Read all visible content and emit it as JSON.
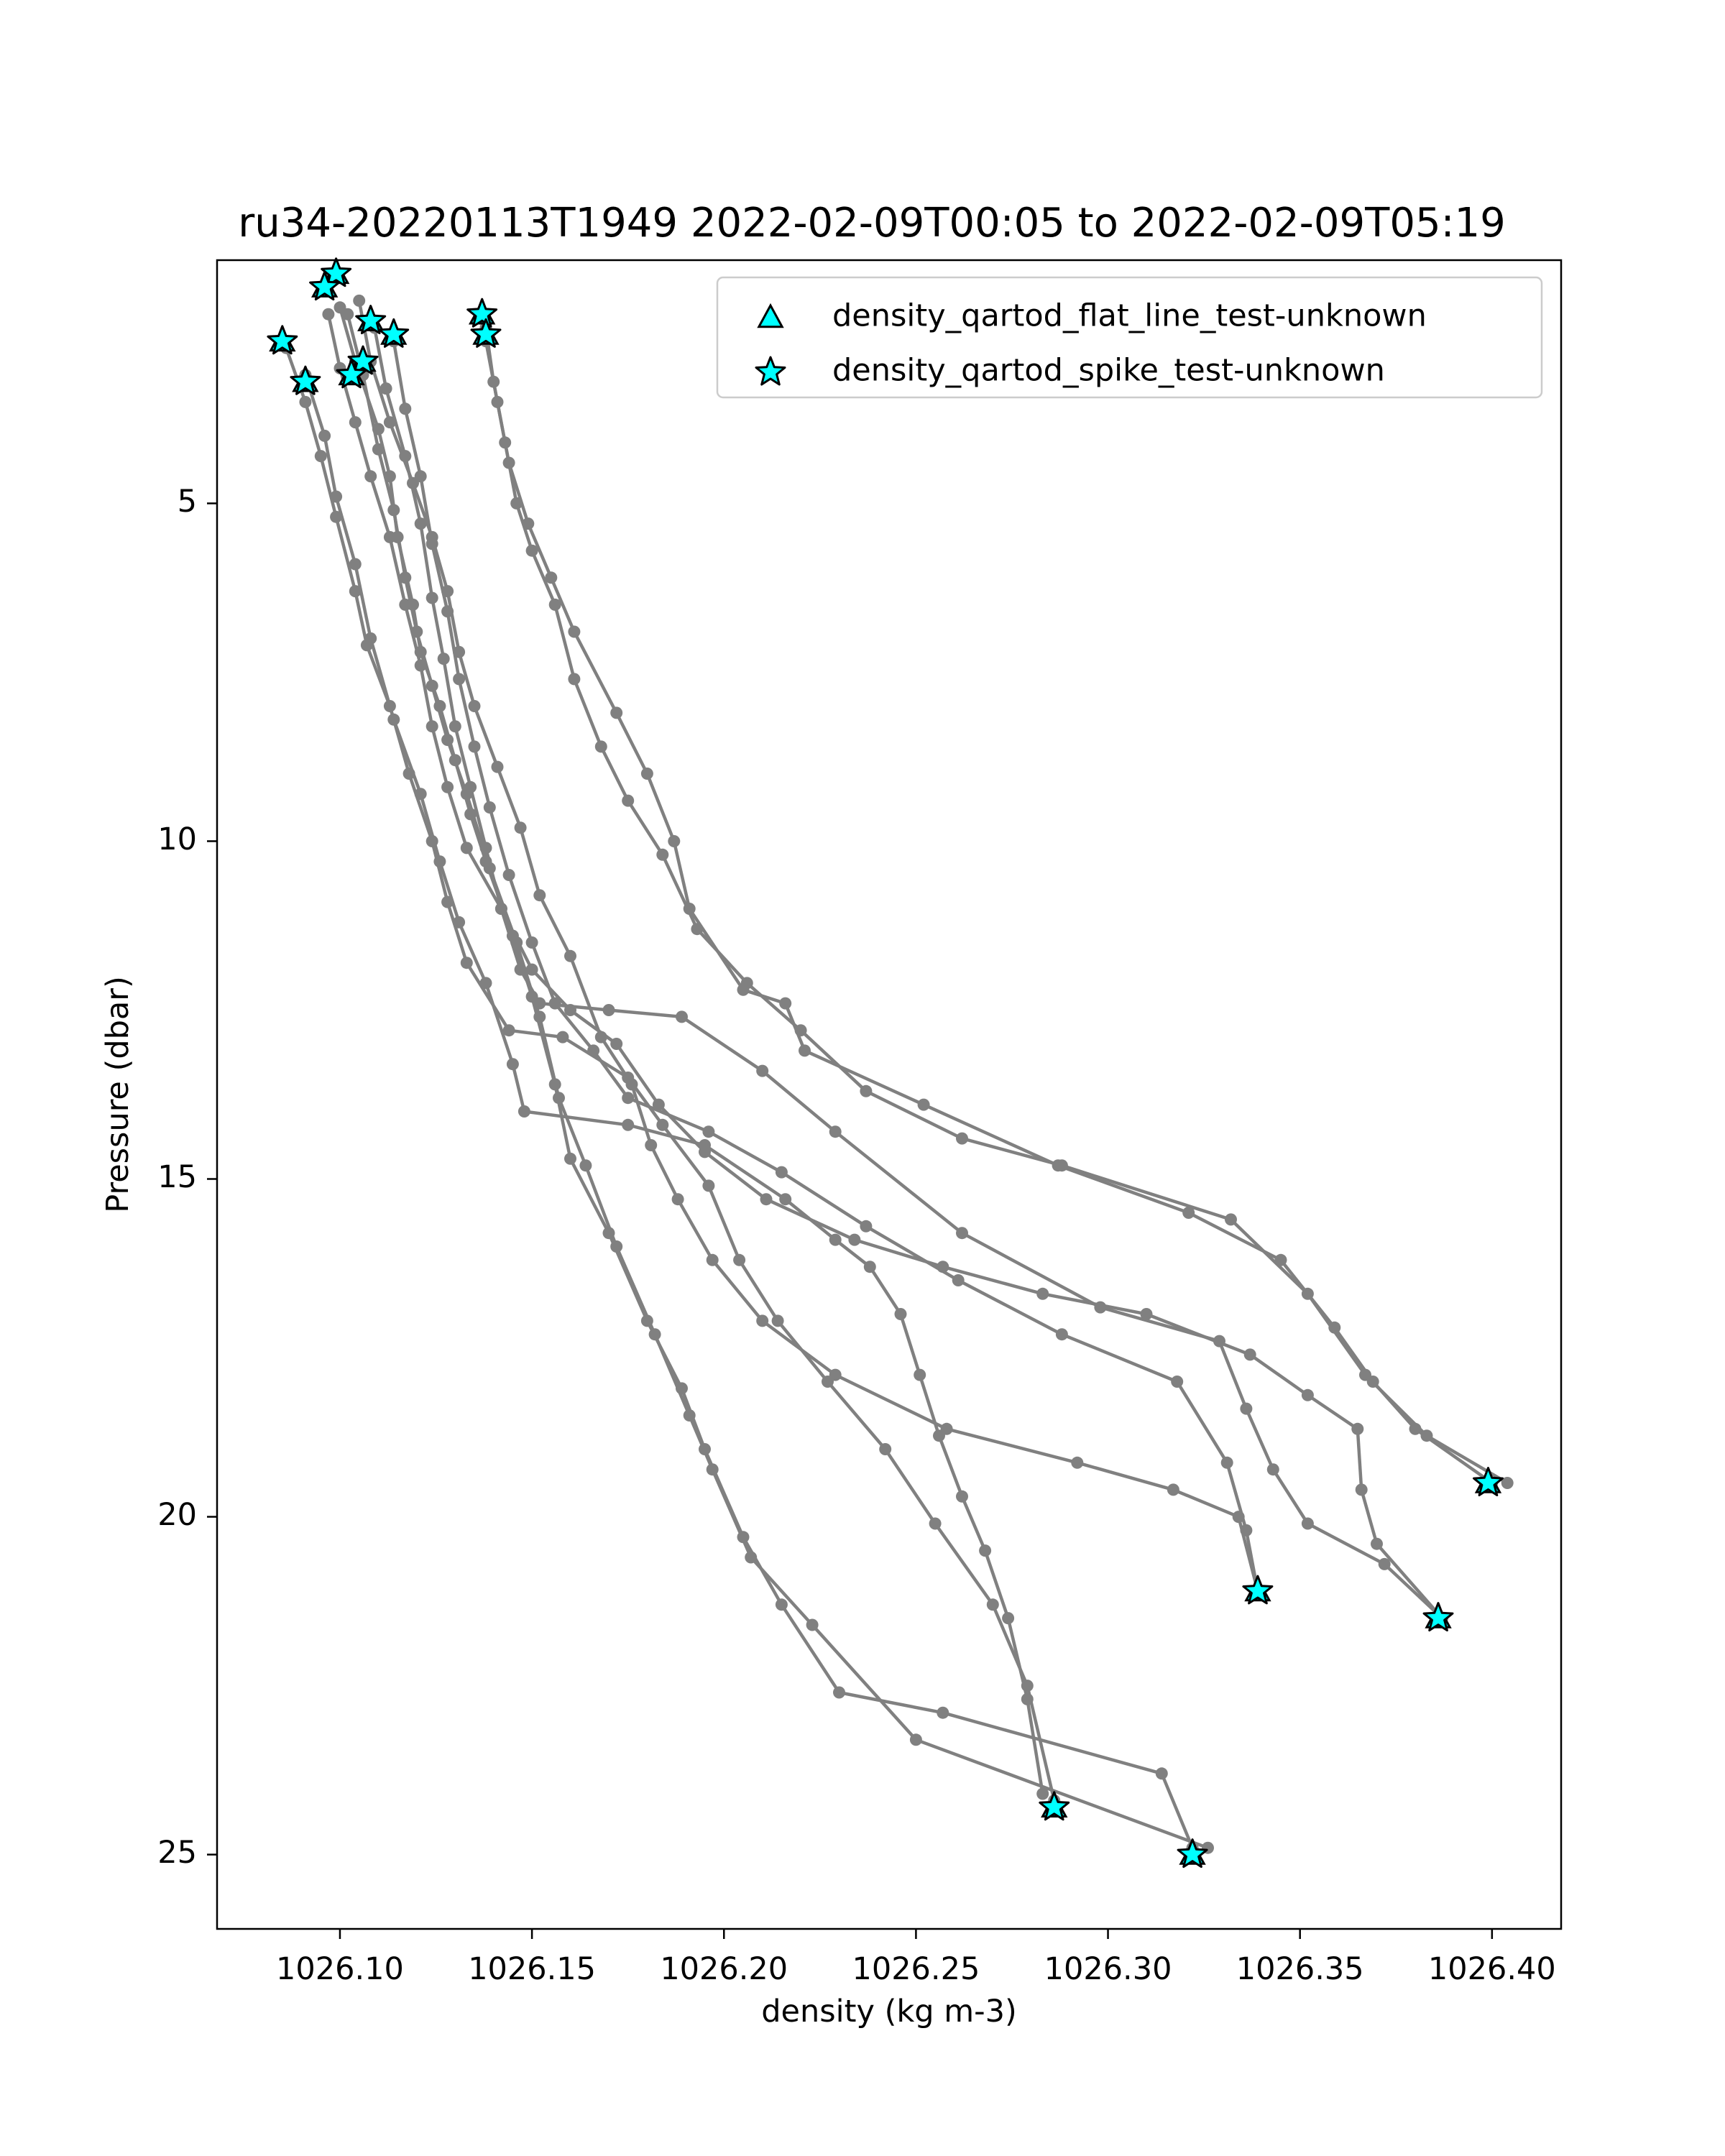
{
  "chart_data": {
    "type": "scatter",
    "title": "ru34-20220113T1949 2022-02-09T00:05 to 2022-02-09T05:19",
    "xlabel": "density (kg m-3)",
    "ylabel": "Pressure (dbar)",
    "xlim": [
      1026.068,
      1026.418
    ],
    "ylim": [
      26.1,
      1.4
    ],
    "y_inverted": true,
    "grid": false,
    "legend_position": "top-right",
    "xticks": [
      1026.1,
      1026.15,
      1026.2,
      1026.25,
      1026.3,
      1026.35,
      1026.4
    ],
    "xtick_labels": [
      "1026.10",
      "1026.15",
      "1026.20",
      "1026.25",
      "1026.30",
      "1026.35",
      "1026.40"
    ],
    "yticks": [
      5,
      10,
      15,
      20,
      25
    ],
    "ytick_labels": [
      "5",
      "10",
      "15",
      "20",
      "25"
    ],
    "colors": {
      "profile_line": "#808080",
      "flag_marker": "#00ffff",
      "marker_edge": "#000000"
    },
    "legend": [
      {
        "label": "density_qartod_flat_line_test-unknown",
        "marker": "triangle"
      },
      {
        "label": "density_qartod_spike_test-unknown",
        "marker": "star"
      }
    ],
    "profiles": [
      {
        "points": [
          [
            1026.1,
            2.1
          ],
          [
            1026.104,
            2.9
          ],
          [
            1026.11,
            3.9
          ],
          [
            1026.113,
            4.6
          ],
          [
            1026.115,
            5.5
          ],
          [
            1026.119,
            6.5
          ],
          [
            1026.121,
            7.2
          ],
          [
            1026.126,
            8.0
          ],
          [
            1026.13,
            8.8
          ],
          [
            1026.134,
            9.6
          ],
          [
            1026.138,
            10.3
          ],
          [
            1026.145,
            11.4
          ],
          [
            1026.15,
            12.3
          ],
          [
            1026.156,
            13.6
          ],
          [
            1026.16,
            14.7
          ],
          [
            1026.17,
            15.8
          ],
          [
            1026.18,
            17.1
          ],
          [
            1026.189,
            18.1
          ],
          [
            1026.195,
            19.0
          ],
          [
            1026.205,
            20.3
          ],
          [
            1026.215,
            21.3
          ],
          [
            1026.23,
            22.6
          ],
          [
            1026.257,
            22.9
          ],
          [
            1026.314,
            23.8
          ],
          [
            1026.322,
            24.9
          ]
        ]
      },
      {
        "points": [
          [
            1026.102,
            2.2
          ],
          [
            1026.106,
            3.1
          ],
          [
            1026.11,
            4.2
          ],
          [
            1026.114,
            5.1
          ],
          [
            1026.117,
            6.1
          ],
          [
            1026.12,
            6.9
          ],
          [
            1026.124,
            7.7
          ],
          [
            1026.128,
            8.5
          ],
          [
            1026.133,
            9.3
          ],
          [
            1026.139,
            10.4
          ],
          [
            1026.146,
            11.5
          ],
          [
            1026.152,
            12.6
          ],
          [
            1026.157,
            13.8
          ],
          [
            1026.164,
            14.8
          ],
          [
            1026.172,
            16.0
          ],
          [
            1026.182,
            17.3
          ],
          [
            1026.191,
            18.5
          ],
          [
            1026.197,
            19.3
          ],
          [
            1026.207,
            20.6
          ],
          [
            1026.223,
            21.6
          ],
          [
            1026.25,
            23.3
          ],
          [
            1026.326,
            24.9
          ]
        ]
      },
      {
        "points": [
          [
            1026.086,
            2.7
          ],
          [
            1026.091,
            3.5
          ],
          [
            1026.095,
            4.3
          ],
          [
            1026.099,
            5.2
          ],
          [
            1026.104,
            6.3
          ],
          [
            1026.107,
            7.1
          ],
          [
            1026.113,
            8.0
          ],
          [
            1026.118,
            9.0
          ],
          [
            1026.124,
            10.0
          ],
          [
            1026.128,
            10.9
          ],
          [
            1026.133,
            11.8
          ],
          [
            1026.144,
            12.8
          ],
          [
            1026.158,
            12.9
          ],
          [
            1026.175,
            13.5
          ],
          [
            1026.184,
            14.2
          ],
          [
            1026.196,
            15.1
          ],
          [
            1026.204,
            16.2
          ],
          [
            1026.214,
            17.1
          ],
          [
            1026.227,
            18.0
          ],
          [
            1026.242,
            19.0
          ],
          [
            1026.255,
            20.1
          ],
          [
            1026.27,
            21.3
          ],
          [
            1026.279,
            22.5
          ],
          [
            1026.286,
            24.2
          ]
        ]
      },
      {
        "points": [
          [
            1026.091,
            3.1
          ],
          [
            1026.096,
            4.0
          ],
          [
            1026.099,
            4.9
          ],
          [
            1026.104,
            5.9
          ],
          [
            1026.108,
            7.0
          ],
          [
            1026.114,
            8.2
          ],
          [
            1026.121,
            9.3
          ],
          [
            1026.126,
            10.3
          ],
          [
            1026.131,
            11.2
          ],
          [
            1026.138,
            12.1
          ],
          [
            1026.145,
            13.3
          ],
          [
            1026.148,
            14.0
          ],
          [
            1026.175,
            14.2
          ],
          [
            1026.195,
            14.5
          ],
          [
            1026.216,
            15.3
          ],
          [
            1026.229,
            15.9
          ],
          [
            1026.238,
            16.3
          ],
          [
            1026.246,
            17.0
          ],
          [
            1026.251,
            17.9
          ],
          [
            1026.256,
            18.8
          ],
          [
            1026.262,
            19.7
          ],
          [
            1026.268,
            20.5
          ],
          [
            1026.274,
            21.5
          ],
          [
            1026.279,
            22.7
          ],
          [
            1026.283,
            24.1
          ]
        ]
      },
      {
        "points": [
          [
            1026.109,
            2.4
          ],
          [
            1026.112,
            3.3
          ],
          [
            1026.117,
            4.3
          ],
          [
            1026.121,
            5.3
          ],
          [
            1026.124,
            6.4
          ],
          [
            1026.127,
            7.3
          ],
          [
            1026.13,
            8.3
          ],
          [
            1026.134,
            9.2
          ],
          [
            1026.138,
            10.1
          ],
          [
            1026.142,
            11.0
          ],
          [
            1026.147,
            11.9
          ],
          [
            1026.152,
            12.4
          ],
          [
            1026.17,
            12.5
          ],
          [
            1026.189,
            12.6
          ],
          [
            1026.21,
            13.4
          ],
          [
            1026.229,
            14.3
          ],
          [
            1026.262,
            15.8
          ],
          [
            1026.298,
            16.9
          ],
          [
            1026.329,
            17.4
          ],
          [
            1026.336,
            18.4
          ],
          [
            1026.343,
            19.3
          ],
          [
            1026.352,
            20.1
          ],
          [
            1026.372,
            20.7
          ],
          [
            1026.387,
            21.5
          ]
        ]
      },
      {
        "points": [
          [
            1026.114,
            2.6
          ],
          [
            1026.117,
            3.6
          ],
          [
            1026.121,
            4.6
          ],
          [
            1026.124,
            5.6
          ],
          [
            1026.128,
            6.6
          ],
          [
            1026.131,
            7.6
          ],
          [
            1026.135,
            8.6
          ],
          [
            1026.139,
            9.5
          ],
          [
            1026.144,
            10.5
          ],
          [
            1026.15,
            11.5
          ],
          [
            1026.156,
            12.4
          ],
          [
            1026.166,
            13.1
          ],
          [
            1026.175,
            13.8
          ],
          [
            1026.196,
            14.3
          ],
          [
            1026.215,
            14.9
          ],
          [
            1026.237,
            15.7
          ],
          [
            1026.261,
            16.5
          ],
          [
            1026.288,
            17.3
          ],
          [
            1026.318,
            18.0
          ],
          [
            1026.331,
            19.2
          ],
          [
            1026.336,
            20.2
          ],
          [
            1026.339,
            21.1
          ]
        ]
      },
      {
        "points": [
          [
            1026.138,
            2.4
          ],
          [
            1026.14,
            3.2
          ],
          [
            1026.143,
            4.1
          ],
          [
            1026.146,
            5.0
          ],
          [
            1026.15,
            5.7
          ],
          [
            1026.156,
            6.5
          ],
          [
            1026.161,
            7.6
          ],
          [
            1026.168,
            8.6
          ],
          [
            1026.175,
            9.4
          ],
          [
            1026.184,
            10.2
          ],
          [
            1026.193,
            11.3
          ],
          [
            1026.206,
            12.1
          ],
          [
            1026.22,
            12.8
          ],
          [
            1026.237,
            13.7
          ],
          [
            1026.262,
            14.4
          ],
          [
            1026.288,
            14.8
          ],
          [
            1026.332,
            15.6
          ],
          [
            1026.352,
            16.7
          ],
          [
            1026.367,
            17.9
          ],
          [
            1026.383,
            18.8
          ],
          [
            1026.404,
            19.5
          ]
        ]
      },
      {
        "points": [
          [
            1026.138,
            2.6
          ],
          [
            1026.141,
            3.5
          ],
          [
            1026.144,
            4.4
          ],
          [
            1026.149,
            5.3
          ],
          [
            1026.155,
            6.1
          ],
          [
            1026.161,
            6.9
          ],
          [
            1026.172,
            8.1
          ],
          [
            1026.18,
            9.0
          ],
          [
            1026.187,
            10.0
          ],
          [
            1026.191,
            11.0
          ],
          [
            1026.205,
            12.2
          ],
          [
            1026.216,
            12.4
          ],
          [
            1026.221,
            13.1
          ],
          [
            1026.252,
            13.9
          ],
          [
            1026.287,
            14.8
          ],
          [
            1026.321,
            15.5
          ],
          [
            1026.345,
            16.2
          ],
          [
            1026.359,
            17.2
          ],
          [
            1026.369,
            18.0
          ],
          [
            1026.38,
            18.7
          ],
          [
            1026.4,
            19.5
          ]
        ]
      },
      {
        "points": [
          [
            1026.105,
            2.0
          ],
          [
            1026.108,
            2.9
          ],
          [
            1026.113,
            3.8
          ],
          [
            1026.119,
            4.7
          ],
          [
            1026.124,
            5.5
          ],
          [
            1026.128,
            6.3
          ],
          [
            1026.131,
            7.2
          ],
          [
            1026.135,
            8.0
          ],
          [
            1026.141,
            8.9
          ],
          [
            1026.147,
            9.8
          ],
          [
            1026.152,
            10.8
          ],
          [
            1026.16,
            11.7
          ],
          [
            1026.168,
            12.9
          ],
          [
            1026.176,
            13.6
          ],
          [
            1026.181,
            14.5
          ],
          [
            1026.188,
            15.3
          ],
          [
            1026.197,
            16.2
          ],
          [
            1026.21,
            17.1
          ],
          [
            1026.229,
            17.9
          ],
          [
            1026.258,
            18.7
          ],
          [
            1026.292,
            19.2
          ],
          [
            1026.317,
            19.6
          ],
          [
            1026.334,
            20.0
          ],
          [
            1026.339,
            21.1
          ]
        ]
      },
      {
        "points": [
          [
            1026.097,
            2.2
          ],
          [
            1026.1,
            3.0
          ],
          [
            1026.104,
            3.8
          ],
          [
            1026.108,
            4.6
          ],
          [
            1026.113,
            5.5
          ],
          [
            1026.117,
            6.5
          ],
          [
            1026.121,
            7.4
          ],
          [
            1026.124,
            8.3
          ],
          [
            1026.128,
            9.2
          ],
          [
            1026.133,
            10.1
          ],
          [
            1026.142,
            11.0
          ],
          [
            1026.15,
            11.9
          ],
          [
            1026.16,
            12.5
          ],
          [
            1026.172,
            13.0
          ],
          [
            1026.183,
            13.9
          ],
          [
            1026.195,
            14.6
          ],
          [
            1026.211,
            15.3
          ],
          [
            1026.234,
            15.9
          ],
          [
            1026.257,
            16.3
          ],
          [
            1026.283,
            16.7
          ],
          [
            1026.31,
            17.0
          ],
          [
            1026.337,
            17.6
          ],
          [
            1026.352,
            18.2
          ],
          [
            1026.365,
            18.7
          ],
          [
            1026.366,
            19.6
          ],
          [
            1026.37,
            20.4
          ],
          [
            1026.387,
            21.5
          ]
        ]
      }
    ],
    "spike_flags": [
      [
        1026.099,
        1.6
      ],
      [
        1026.096,
        1.8
      ],
      [
        1026.108,
        2.3
      ],
      [
        1026.114,
        2.5
      ],
      [
        1026.085,
        2.6
      ],
      [
        1026.106,
        2.9
      ],
      [
        1026.103,
        3.1
      ],
      [
        1026.091,
        3.2
      ],
      [
        1026.137,
        2.2
      ],
      [
        1026.138,
        2.5
      ],
      [
        1026.286,
        24.3
      ],
      [
        1026.322,
        25.0
      ],
      [
        1026.339,
        21.1
      ],
      [
        1026.386,
        21.5
      ],
      [
        1026.399,
        19.5
      ]
    ],
    "flat_line_flags": [
      [
        1026.099,
        1.6
      ],
      [
        1026.096,
        1.8
      ],
      [
        1026.108,
        2.3
      ],
      [
        1026.114,
        2.5
      ],
      [
        1026.085,
        2.6
      ],
      [
        1026.106,
        2.9
      ],
      [
        1026.103,
        3.1
      ],
      [
        1026.091,
        3.2
      ],
      [
        1026.137,
        2.2
      ],
      [
        1026.138,
        2.5
      ],
      [
        1026.286,
        24.3
      ],
      [
        1026.322,
        25.0
      ],
      [
        1026.339,
        21.1
      ],
      [
        1026.386,
        21.5
      ],
      [
        1026.399,
        19.5
      ]
    ]
  }
}
